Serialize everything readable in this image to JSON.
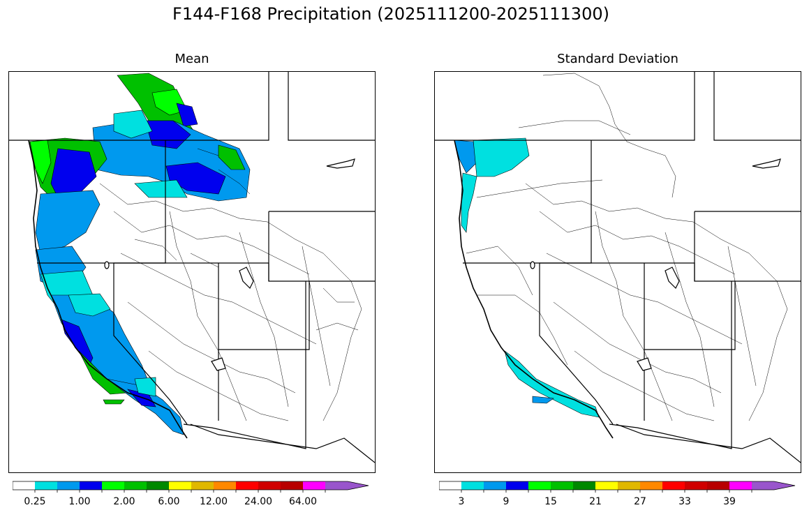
{
  "figure": {
    "title": "F144-F168 Precipitation (2025111200-2025111300)"
  },
  "panels": [
    {
      "title": "Mean",
      "colorbar": {
        "tick_labels": [
          "0.25",
          "1.00",
          "2.00",
          "6.00",
          "12.00",
          "24.00",
          "64.00"
        ],
        "colors": [
          "#ffffff",
          "#00e0e0",
          "#0099ee",
          "#0000ee",
          "#00ff00",
          "#00c000",
          "#008800",
          "#ffff00",
          "#e0b800",
          "#ff8800",
          "#ff0000",
          "#d00000",
          "#b80000",
          "#ff00ff",
          "#9955cc"
        ]
      }
    },
    {
      "title": "Standard Deviation",
      "colorbar": {
        "tick_labels": [
          "3",
          "9",
          "15",
          "21",
          "27",
          "33",
          "39"
        ],
        "colors": [
          "#ffffff",
          "#00e0e0",
          "#0099ee",
          "#0000ee",
          "#00ff00",
          "#00c000",
          "#008800",
          "#ffff00",
          "#e0b800",
          "#ff8800",
          "#ff0000",
          "#d00000",
          "#b80000",
          "#ff00ff",
          "#9955cc"
        ]
      }
    }
  ]
}
